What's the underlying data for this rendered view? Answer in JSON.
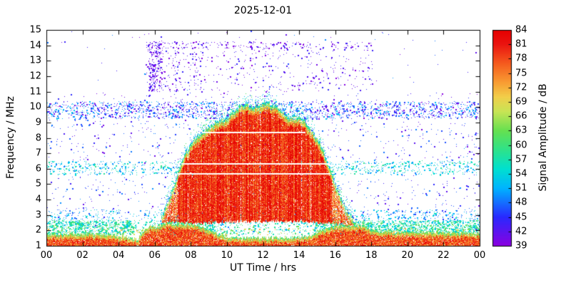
{
  "chart_data": {
    "type": "heatmap",
    "subtype": "radio-spectrogram",
    "title": "2025-12-01",
    "xlabel": "UT Time / hrs",
    "ylabel": "Frequency / MHz",
    "cblabel": "Signal Amplitude / dB",
    "x_range": [
      0,
      24
    ],
    "y_range": [
      1,
      15
    ],
    "cb_range": [
      39,
      84
    ],
    "x_tick_values": [
      0,
      2,
      4,
      6,
      8,
      10,
      12,
      14,
      16,
      18,
      20,
      22,
      24
    ],
    "x_tick_labels": [
      "00",
      "02",
      "04",
      "06",
      "08",
      "10",
      "12",
      "14",
      "16",
      "18",
      "20",
      "22",
      "00"
    ],
    "y_tick_values": [
      1,
      2,
      3,
      4,
      5,
      6,
      7,
      8,
      9,
      10,
      11,
      12,
      13,
      14,
      15
    ],
    "cb_tick_values": [
      39,
      42,
      45,
      48,
      51,
      54,
      57,
      60,
      63,
      66,
      69,
      72,
      75,
      78,
      81,
      84
    ],
    "grid": false,
    "legend_position": "right-colorbar",
    "colormap": [
      [
        39,
        "#8a00e0"
      ],
      [
        45,
        "#2929ff"
      ],
      [
        51,
        "#00b4ff"
      ],
      [
        55,
        "#00e0d0"
      ],
      [
        59,
        "#2ee28a"
      ],
      [
        63,
        "#66e050"
      ],
      [
        67,
        "#c8e455"
      ],
      [
        70,
        "#f2cf4a"
      ],
      [
        73,
        "#f89d33"
      ],
      [
        77,
        "#f55b1e"
      ],
      [
        81,
        "#ea1410"
      ],
      [
        84,
        "#e60000"
      ]
    ],
    "noise_bands": [
      {
        "f": [
          1.75,
          2.65
        ],
        "t": [
          0,
          24
        ],
        "db": [
          51,
          63
        ],
        "density": 190,
        "mods": [
          {
            "t": [
              4.8,
              6.3
            ],
            "factor": 0.3
          },
          {
            "t": [
              9.4,
              14.8
            ],
            "factor": 0.25
          }
        ]
      },
      {
        "f": [
          1.7,
          2.15
        ],
        "t": [
          0,
          24
        ],
        "db": [
          63,
          72
        ],
        "density": 22
      },
      {
        "f": [
          2.65,
          3.35
        ],
        "t": [
          0,
          24
        ],
        "db": [
          45,
          56
        ],
        "density": 42
      },
      {
        "f": [
          3.35,
          5.6
        ],
        "t": [
          0,
          24
        ],
        "db": [
          41,
          50
        ],
        "density": 6
      },
      {
        "f": [
          5.6,
          6.5
        ],
        "t": [
          0,
          24
        ],
        "db": [
          48,
          59
        ],
        "density": 55
      },
      {
        "f": [
          6.5,
          9.25
        ],
        "t": [
          0,
          24
        ],
        "db": [
          40,
          50
        ],
        "density": 7
      },
      {
        "f": [
          9.25,
          10.35
        ],
        "t": [
          0,
          24
        ],
        "db": [
          39,
          53
        ],
        "density": 75
      },
      {
        "f": [
          10.35,
          11.0
        ],
        "t": [
          0,
          24
        ],
        "db": [
          39,
          46
        ],
        "density": 4
      },
      {
        "f": [
          11.0,
          15.0
        ],
        "t": [
          0,
          24
        ],
        "db": [
          39,
          45
        ],
        "density": 0.4
      },
      {
        "f": [
          11.0,
          14.25
        ],
        "t": [
          5.5,
          18.1
        ],
        "db": [
          39,
          45
        ],
        "density": 11
      },
      {
        "f": [
          11.0,
          14.3
        ],
        "t": [
          5.6,
          6.4
        ],
        "db": [
          39,
          44
        ],
        "density": 70
      },
      {
        "f": [
          13.8,
          14.25
        ],
        "t": [
          5.5,
          18.1
        ],
        "db": [
          39,
          44
        ],
        "density": 26
      },
      {
        "f": [
          11.0,
          13.6
        ],
        "t": [
          5.8,
          8.6
        ],
        "db": [
          39,
          45
        ],
        "density": 14
      },
      {
        "f": [
          1.6,
          2.6
        ],
        "t": [
          9.2,
          15.0
        ],
        "db": [
          48,
          58
        ],
        "density": 10
      },
      {
        "f": [
          1.0,
          15.0
        ],
        "t": [
          0,
          24
        ],
        "db": [
          40,
          50
        ],
        "density": 0.35
      }
    ],
    "bottom_band": {
      "f_bottom": 1.0,
      "amp_range": [
        71,
        84
      ],
      "f_top_profile": [
        [
          0,
          1.8
        ],
        [
          3,
          1.8
        ],
        [
          4.6,
          1.6
        ],
        [
          5.0,
          1.4
        ],
        [
          5.35,
          1.95
        ],
        [
          5.7,
          2.35
        ],
        [
          6.1,
          2.25
        ],
        [
          6.45,
          2.5
        ],
        [
          8.3,
          2.4
        ],
        [
          9.0,
          2.05
        ],
        [
          9.6,
          1.75
        ],
        [
          10.2,
          1.55
        ],
        [
          13.8,
          1.55
        ],
        [
          14.6,
          1.7
        ],
        [
          15.2,
          2.0
        ],
        [
          15.9,
          2.3
        ],
        [
          17.6,
          2.35
        ],
        [
          18.1,
          2.0
        ],
        [
          19.5,
          1.9
        ],
        [
          22.0,
          1.9
        ],
        [
          24.0,
          1.85
        ]
      ]
    },
    "trace": {
      "t_start": 6.3,
      "t_end": 17.0,
      "amp_range": [
        66,
        84
      ],
      "envelope": [
        [
          6.3,
          2.8
        ],
        [
          6.8,
          4.2
        ],
        [
          7.2,
          5.6
        ],
        [
          7.7,
          7.1
        ],
        [
          8.2,
          8.0
        ],
        [
          8.8,
          8.6
        ],
        [
          9.4,
          9.1
        ],
        [
          10.0,
          9.4
        ],
        [
          10.5,
          10.0
        ],
        [
          11.0,
          10.3
        ],
        [
          11.6,
          10.1
        ],
        [
          12.1,
          10.4
        ],
        [
          12.6,
          10.2
        ],
        [
          13.0,
          9.9
        ],
        [
          13.4,
          9.4
        ],
        [
          14.1,
          9.4
        ],
        [
          14.6,
          8.7
        ],
        [
          15.1,
          7.8
        ],
        [
          15.6,
          6.4
        ],
        [
          16.1,
          4.8
        ],
        [
          16.6,
          3.5
        ],
        [
          17.0,
          2.8
        ]
      ],
      "base": [
        [
          6.3,
          2.55
        ],
        [
          9.0,
          2.5
        ],
        [
          10.0,
          2.6
        ],
        [
          14.0,
          2.6
        ],
        [
          16.0,
          2.45
        ],
        [
          17.0,
          2.3
        ]
      ]
    },
    "white_lines": [
      {
        "f": 8.35,
        "t": [
          7.9,
          14.35
        ]
      },
      {
        "f": 6.3,
        "t": [
          7.0,
          15.9
        ]
      },
      {
        "f": 5.65,
        "t": [
          7.2,
          15.7
        ]
      }
    ]
  }
}
